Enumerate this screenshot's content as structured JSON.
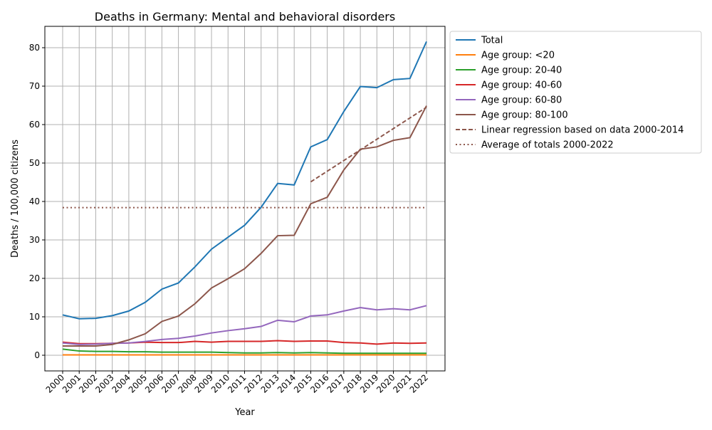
{
  "chart_data": {
    "type": "line",
    "title": "Deaths in Germany: Mental and behavioral disorders",
    "xlabel": "Year",
    "ylabel": "Deaths / 100,000 citizens",
    "ylim": [
      -4,
      85.5
    ],
    "yticks": [
      0,
      10,
      20,
      30,
      40,
      50,
      60,
      70,
      80
    ],
    "grid": true,
    "legend_position": "outside-right",
    "x": [
      2000,
      2001,
      2002,
      2003,
      2004,
      2005,
      2006,
      2007,
      2008,
      2009,
      2010,
      2011,
      2012,
      2013,
      2014,
      2015,
      2016,
      2017,
      2018,
      2019,
      2020,
      2021,
      2022
    ],
    "series": [
      {
        "name": "Total",
        "color": "#1f77b4",
        "style": "solid",
        "values": [
          10.5,
          9.5,
          9.6,
          10.3,
          11.5,
          13.8,
          17.2,
          18.8,
          23.0,
          27.6,
          30.7,
          33.8,
          38.5,
          44.7,
          44.3,
          54.2,
          56.1,
          63.4,
          69.9,
          69.6,
          71.7,
          72.0,
          81.6
        ]
      },
      {
        "name": "Age group: <20",
        "color": "#ff7f0e",
        "style": "solid",
        "values": [
          0.1,
          0.1,
          0.1,
          0.1,
          0.1,
          0.1,
          0.1,
          0.1,
          0.1,
          0.1,
          0.1,
          0.1,
          0.1,
          0.1,
          0.1,
          0.1,
          0.1,
          0.1,
          0.1,
          0.1,
          0.1,
          0.1,
          0.1
        ]
      },
      {
        "name": "Age group: 20-40",
        "color": "#2ca02c",
        "style": "solid",
        "values": [
          1.6,
          1.1,
          1.0,
          1.0,
          0.9,
          0.9,
          0.8,
          0.8,
          0.8,
          0.8,
          0.7,
          0.6,
          0.6,
          0.7,
          0.6,
          0.7,
          0.6,
          0.5,
          0.5,
          0.5,
          0.5,
          0.5,
          0.5
        ]
      },
      {
        "name": "Age group: 40-60",
        "color": "#d62728",
        "style": "solid",
        "values": [
          3.4,
          3.0,
          3.0,
          3.1,
          3.2,
          3.4,
          3.3,
          3.3,
          3.6,
          3.4,
          3.6,
          3.6,
          3.6,
          3.8,
          3.6,
          3.7,
          3.7,
          3.3,
          3.2,
          2.9,
          3.2,
          3.1,
          3.2
        ]
      },
      {
        "name": "Age group: 60-80",
        "color": "#9467bd",
        "style": "solid",
        "values": [
          3.2,
          2.8,
          2.9,
          3.1,
          3.2,
          3.6,
          4.1,
          4.4,
          5.0,
          5.8,
          6.4,
          6.9,
          7.5,
          9.1,
          8.7,
          10.2,
          10.5,
          11.5,
          12.4,
          11.8,
          12.1,
          11.8,
          12.9
        ]
      },
      {
        "name": "Age group: 80-100",
        "color": "#8c564b",
        "style": "solid",
        "values": [
          2.4,
          2.4,
          2.4,
          2.8,
          4.0,
          5.6,
          8.8,
          10.2,
          13.4,
          17.5,
          19.9,
          22.5,
          26.5,
          31.1,
          31.2,
          39.4,
          41.1,
          48.2,
          53.6,
          54.2,
          55.9,
          56.6,
          64.9
        ]
      },
      {
        "name": "Linear regression based on data 2000-2014",
        "color": "#8c564b",
        "style": "dashed",
        "x": [
          2015,
          2022
        ],
        "values": [
          45.1,
          64.5
        ]
      },
      {
        "name": "Average of totals 2000-2022",
        "color": "#8c564b",
        "style": "dotted",
        "x": [
          2000,
          2022
        ],
        "values": [
          38.4,
          38.4
        ]
      }
    ]
  }
}
